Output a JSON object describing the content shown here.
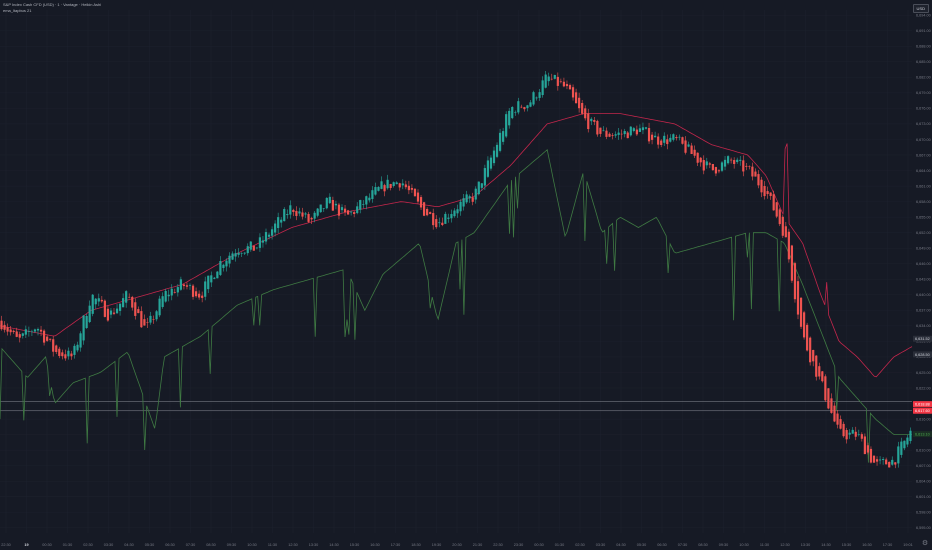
{
  "header": {
    "title": "S&P Index Cash CFD (USD) · 1 · Vantage · Heikin Ashi",
    "indicator": "ema_ltapbus 21",
    "currency": "USD"
  },
  "colors": {
    "background": "#161a25",
    "up_candle": "#26a69a",
    "down_candle": "#ef5350",
    "ema_line": "#c2264b",
    "lower_band": "#3f7a43",
    "grid": "#1f2330",
    "axis_text": "#787b86",
    "level_line": "#b2b5be",
    "price_label_red": "#f23645"
  },
  "icons": {
    "corner": "gear-icon"
  },
  "chart_data": {
    "type": "candlestick",
    "chart_style": "Heikin Ashi",
    "timeframe": "1",
    "title": "S&P Index Cash CFD (USD) · 1 · Vantage · Heikin Ashi",
    "ylim": [
      6594,
      6695
    ],
    "y_ticks": [
      6694.0,
      6691.0,
      6688.0,
      6685.0,
      6682.0,
      6679.0,
      6676.0,
      6673.0,
      6670.0,
      6667.0,
      6664.0,
      6661.0,
      6658.0,
      6655.0,
      6652.0,
      6649.0,
      6646.0,
      6643.0,
      6640.0,
      6637.0,
      6634.0,
      6631.0,
      6628.0,
      6625.0,
      6622.0,
      6619.0,
      6616.0,
      6613.0,
      6610.0,
      6607.0,
      6604.0,
      6601.0,
      6598.0,
      6595.0
    ],
    "x_ticks": [
      "22:30",
      "19",
      "00:30",
      "01:30",
      "02:30",
      "03:30",
      "04:30",
      "05:30",
      "06:30",
      "07:30",
      "08:30",
      "09:30",
      "10:30",
      "11:30",
      "12:30",
      "13:30",
      "14:30",
      "15:30",
      "16:30",
      "17:30",
      "18:30",
      "19:30",
      "20:30",
      "21:30",
      "22:30",
      "23:30",
      "00:30",
      "01:30",
      "02:30",
      "03:30",
      "04:30",
      "05:30",
      "06:30",
      "07:30",
      "08:30",
      "09:30",
      "10:30",
      "11:30",
      "12:30",
      "13:30",
      "14:30",
      "15:30",
      "16:30",
      "17:30",
      "19:01"
    ],
    "horizontal_levels": [
      6619.35,
      6617.6
    ],
    "price_labels": [
      {
        "value": "6,631.52",
        "color": "#d1d4dc",
        "bg": "#2a2e39"
      },
      {
        "value": "6,628.50",
        "color": "#d1d4dc",
        "bg": "#2a2e39"
      },
      {
        "value": "6,618.88",
        "color": "#ffffff",
        "bg": "#f23645"
      },
      {
        "value": "6,617.60",
        "color": "#ffffff",
        "bg": "#f23645"
      },
      {
        "value": "6,613.10",
        "color": "#4caf50",
        "bg": "#1b2e24"
      }
    ],
    "price_path": [
      [
        0.0,
        6635
      ],
      [
        0.02,
        6631
      ],
      [
        0.04,
        6634
      ],
      [
        0.06,
        6629
      ],
      [
        0.08,
        6628
      ],
      [
        0.1,
        6640
      ],
      [
        0.12,
        6636
      ],
      [
        0.14,
        6640
      ],
      [
        0.16,
        6633
      ],
      [
        0.18,
        6640
      ],
      [
        0.2,
        6642
      ],
      [
        0.22,
        6640
      ],
      [
        0.24,
        6646
      ],
      [
        0.26,
        6649
      ],
      [
        0.28,
        6649
      ],
      [
        0.3,
        6653
      ],
      [
        0.32,
        6657
      ],
      [
        0.34,
        6654
      ],
      [
        0.36,
        6658
      ],
      [
        0.38,
        6655
      ],
      [
        0.4,
        6658
      ],
      [
        0.42,
        6661
      ],
      [
        0.44,
        6662
      ],
      [
        0.46,
        6657
      ],
      [
        0.48,
        6654
      ],
      [
        0.5,
        6657
      ],
      [
        0.52,
        6659
      ],
      [
        0.54,
        6667
      ],
      [
        0.56,
        6676
      ],
      [
        0.58,
        6677
      ],
      [
        0.6,
        6682
      ],
      [
        0.62,
        6680
      ],
      [
        0.64,
        6674
      ],
      [
        0.66,
        6671
      ],
      [
        0.68,
        6671
      ],
      [
        0.7,
        6672
      ],
      [
        0.72,
        6670
      ],
      [
        0.74,
        6670
      ],
      [
        0.76,
        6667
      ],
      [
        0.78,
        6664
      ],
      [
        0.8,
        6666
      ],
      [
        0.82,
        6664
      ],
      [
        0.84,
        6660
      ],
      [
        0.86,
        6652
      ],
      [
        0.88,
        6632
      ],
      [
        0.9,
        6623
      ],
      [
        0.92,
        6613
      ],
      [
        0.94,
        6613
      ],
      [
        0.96,
        6607
      ],
      [
        0.98,
        6608
      ],
      [
        1.0,
        6614
      ]
    ],
    "series": [
      {
        "name": "ema_ltapbus 21",
        "color": "#c2264b",
        "points": [
          [
            0.0,
            6634
          ],
          [
            0.06,
            6632
          ],
          [
            0.1,
            6637
          ],
          [
            0.16,
            6640
          ],
          [
            0.2,
            6642
          ],
          [
            0.26,
            6648
          ],
          [
            0.32,
            6653
          ],
          [
            0.38,
            6656
          ],
          [
            0.44,
            6658
          ],
          [
            0.48,
            6657
          ],
          [
            0.52,
            6659
          ],
          [
            0.56,
            6665
          ],
          [
            0.6,
            6673
          ],
          [
            0.64,
            6675
          ],
          [
            0.68,
            6675
          ],
          [
            0.74,
            6673
          ],
          [
            0.78,
            6669
          ],
          [
            0.82,
            6667
          ],
          [
            0.84,
            6663
          ],
          [
            0.86,
            6655
          ],
          [
            0.88,
            6650
          ],
          [
            0.9,
            6640
          ],
          [
            0.92,
            6631
          ],
          [
            0.94,
            6628
          ],
          [
            0.96,
            6624
          ],
          [
            0.98,
            6628
          ],
          [
            1.0,
            6630
          ]
        ]
      },
      {
        "name": "lower band",
        "color": "#3f7a43",
        "points": [
          [
            0.0,
            6630
          ],
          [
            0.03,
            6624
          ],
          [
            0.05,
            6628
          ],
          [
            0.06,
            6619
          ],
          [
            0.08,
            6623
          ],
          [
            0.11,
            6625
          ],
          [
            0.14,
            6629
          ],
          [
            0.17,
            6614
          ],
          [
            0.18,
            6628
          ],
          [
            0.22,
            6632
          ],
          [
            0.26,
            6638
          ],
          [
            0.3,
            6641
          ],
          [
            0.34,
            6643
          ],
          [
            0.38,
            6645
          ],
          [
            0.4,
            6637
          ],
          [
            0.42,
            6644
          ],
          [
            0.46,
            6650
          ],
          [
            0.48,
            6635
          ],
          [
            0.5,
            6650
          ],
          [
            0.52,
            6652
          ],
          [
            0.56,
            6662
          ],
          [
            0.6,
            6668
          ],
          [
            0.62,
            6651
          ],
          [
            0.64,
            6664
          ],
          [
            0.66,
            6652
          ],
          [
            0.68,
            6655
          ],
          [
            0.7,
            6653
          ],
          [
            0.72,
            6655
          ],
          [
            0.74,
            6648
          ],
          [
            0.78,
            6650
          ],
          [
            0.82,
            6652
          ],
          [
            0.84,
            6652
          ],
          [
            0.86,
            6650
          ],
          [
            0.88,
            6642
          ],
          [
            0.9,
            6633
          ],
          [
            0.92,
            6624
          ],
          [
            0.94,
            6620
          ],
          [
            0.96,
            6616
          ],
          [
            0.98,
            6613
          ],
          [
            1.0,
            6613
          ]
        ]
      }
    ],
    "grid": true
  }
}
